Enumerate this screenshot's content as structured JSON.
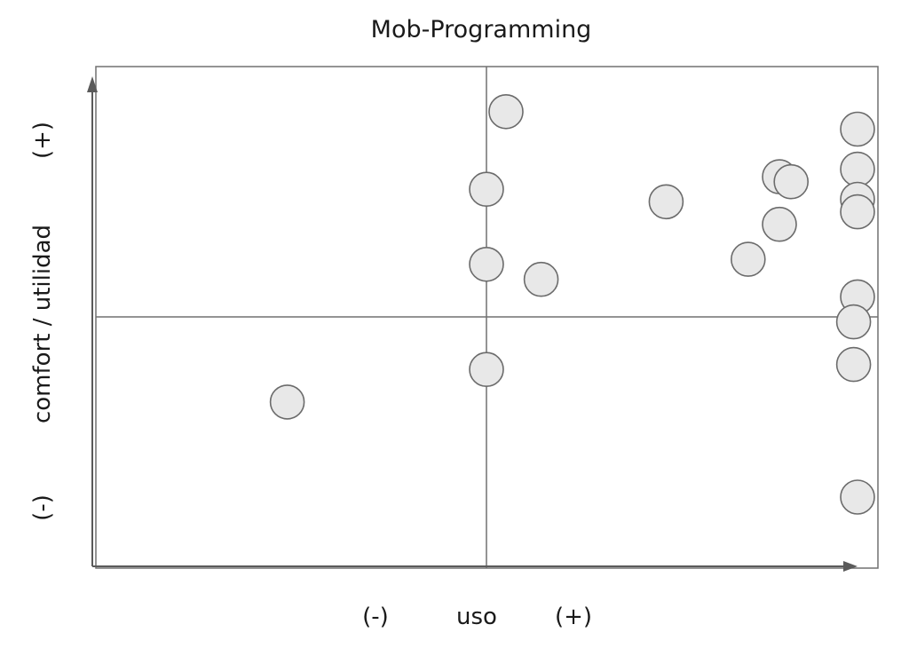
{
  "chart_data": {
    "type": "scatter",
    "title": "Mob-Programming",
    "xlabel": "uso",
    "ylabel": "comfort / utilidad",
    "x_minus_label": "(-)",
    "x_plus_label": "(+)",
    "y_minus_label": "(-)",
    "y_plus_label": "(+)",
    "xlim": [
      -1,
      1
    ],
    "ylim": [
      -1,
      1
    ],
    "quadrant_divider": {
      "x": 0,
      "y": 0
    },
    "grid": false,
    "colors": {
      "point_fill": "#e8e8e8",
      "point_stroke": "#6b6b6b",
      "frame": "#707070",
      "axis": "#5a5a5a"
    },
    "points": [
      {
        "x": 0.05,
        "y": 0.82
      },
      {
        "x": 0.0,
        "y": 0.51
      },
      {
        "x": 0.0,
        "y": 0.21
      },
      {
        "x": 0.14,
        "y": 0.15
      },
      {
        "x": 0.46,
        "y": 0.46
      },
      {
        "x": 0.67,
        "y": 0.23
      },
      {
        "x": 0.75,
        "y": 0.56
      },
      {
        "x": 0.78,
        "y": 0.54
      },
      {
        "x": 0.75,
        "y": 0.37
      },
      {
        "x": 0.95,
        "y": 0.75
      },
      {
        "x": 0.95,
        "y": 0.59
      },
      {
        "x": 0.95,
        "y": 0.47
      },
      {
        "x": 0.95,
        "y": 0.42
      },
      {
        "x": 0.95,
        "y": 0.08
      },
      {
        "x": 0.94,
        "y": -0.02
      },
      {
        "x": 0.94,
        "y": -0.19
      },
      {
        "x": 0.95,
        "y": -0.72
      },
      {
        "x": 0.0,
        "y": -0.21
      },
      {
        "x": -0.51,
        "y": -0.34
      }
    ]
  }
}
